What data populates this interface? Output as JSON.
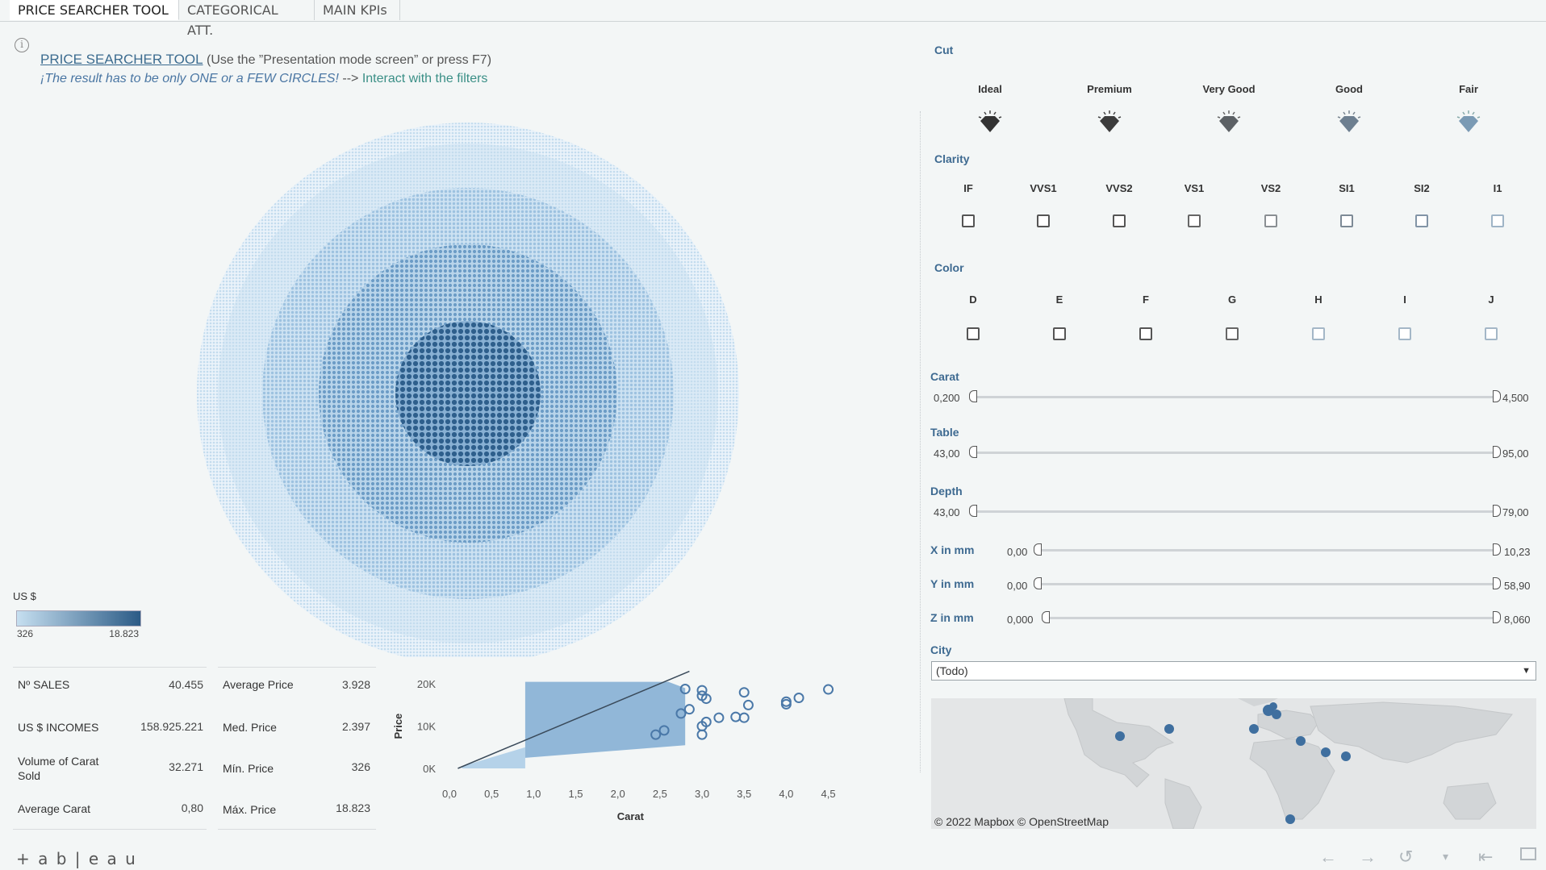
{
  "tabs": [
    {
      "label": "PRICE SEARCHER TOOL",
      "active": true
    },
    {
      "label": "CATEGORICAL ATT.",
      "active": false
    },
    {
      "label": "MAIN KPIs",
      "active": false
    }
  ],
  "header": {
    "title_link": "PRICE SEARCHER TOOL",
    "title_rest": "(Use the ”Presentation mode screen” or press F7)",
    "subtitle_italic": "¡The result has to be only ONE or a FEW CIRCLES!",
    "subtitle_arrow": "-->",
    "subtitle_link": "Interact with the filters"
  },
  "legend": {
    "title": "US $",
    "min": "326",
    "max": "18.823",
    "color_low": "#c6dff0",
    "color_high": "#2b5b86"
  },
  "kpis": {
    "left": [
      {
        "label": "Nº SALES",
        "value": "40.455"
      },
      {
        "label": "US $ INCOMES",
        "value": "158.925.221"
      },
      {
        "label_line1": "Volume of Carat",
        "label_line2": "Sold",
        "value": "32.271"
      },
      {
        "label": "Average Carat",
        "value": "0,80"
      }
    ],
    "right": [
      {
        "label": "Average Price",
        "value": "3.928"
      },
      {
        "label": "Med. Price",
        "value": "2.397"
      },
      {
        "label": "Mín. Price",
        "value": "326"
      },
      {
        "label": "Máx. Price",
        "value": "18.823"
      }
    ]
  },
  "chart_data": {
    "type": "scatter",
    "xlabel": "Carat",
    "ylabel": "Price",
    "x_ticks": [
      "0,0",
      "0,5",
      "1,0",
      "1,5",
      "2,0",
      "2,5",
      "3,0",
      "3,5",
      "4,0",
      "4,5"
    ],
    "y_ticks": [
      "0K",
      "10K",
      "20K"
    ],
    "xlim": [
      0,
      4.6
    ],
    "ylim": [
      0,
      21000
    ],
    "trend_line": [
      [
        0.1,
        0
      ],
      [
        2.85,
        23000
      ]
    ],
    "outliers": [
      [
        2.8,
        18800
      ],
      [
        3.0,
        18500
      ],
      [
        3.0,
        17200
      ],
      [
        3.05,
        16500
      ],
      [
        3.05,
        11000
      ],
      [
        3.0,
        10000
      ],
      [
        3.0,
        8000
      ],
      [
        3.5,
        18000
      ],
      [
        3.55,
        15000
      ],
      [
        3.4,
        12200
      ],
      [
        3.2,
        12000
      ],
      [
        3.5,
        12000
      ],
      [
        4.0,
        15200
      ],
      [
        4.0,
        15800
      ],
      [
        4.15,
        16700
      ],
      [
        4.5,
        18700
      ],
      [
        2.85,
        14000
      ],
      [
        2.75,
        13000
      ],
      [
        2.55,
        9000
      ],
      [
        2.45,
        8000
      ]
    ],
    "mass_regions": [
      {
        "x_from": 0.15,
        "x_to": 0.9,
        "y_from": 0,
        "y_to": 5000
      },
      {
        "x_from": 0.9,
        "x_to": 2.8,
        "y_from": 2500,
        "y_to": 19000
      }
    ]
  },
  "filters": {
    "cut": {
      "label": "Cut",
      "options": [
        "Ideal",
        "Premium",
        "Very Good",
        "Good",
        "Fair"
      ]
    },
    "clarity": {
      "label": "Clarity",
      "options": [
        "IF",
        "VVS1",
        "VVS2",
        "VS1",
        "VS2",
        "SI1",
        "SI2",
        "I1"
      ]
    },
    "color": {
      "label": "Color",
      "options": [
        "D",
        "E",
        "F",
        "G",
        "H",
        "I",
        "J"
      ]
    },
    "sliders": [
      {
        "label": "Carat",
        "min": "0,200",
        "max": "4,500"
      },
      {
        "label": "Table",
        "min": "43,00",
        "max": "95,00"
      },
      {
        "label": "Depth",
        "min": "43,00",
        "max": "79,00"
      },
      {
        "label": "X in mm",
        "min": "0,00",
        "max": "10,23"
      },
      {
        "label": "Y in mm",
        "min": "0,00",
        "max": "58,90"
      },
      {
        "label": "Z in mm",
        "min": "0,000",
        "max": "8,060"
      }
    ],
    "city": {
      "label": "City",
      "value": "(Todo)"
    }
  },
  "map": {
    "attribution": "© 2022 Mapbox  © OpenStreetMap"
  },
  "footer": {
    "logo": "+ a b | e a u"
  }
}
